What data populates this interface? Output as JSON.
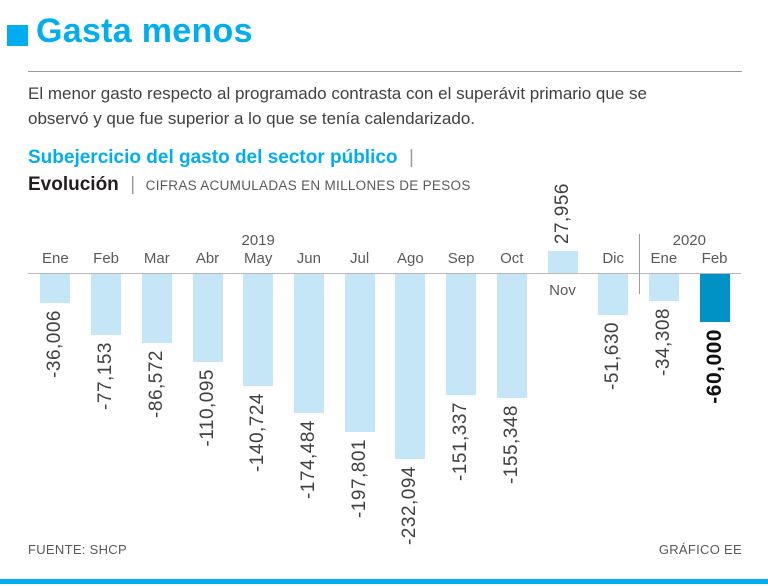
{
  "colors": {
    "accent": "#00AEEF",
    "bar": "#C5E6F7",
    "bar_highlight": "#0092C4",
    "text_dark": "#414042",
    "text_gray": "#58595B",
    "rule": "#9B9B9B"
  },
  "header": {
    "title": "Gasta menos"
  },
  "intro": "El menor gasto respecto al programado contrasta con el superávit primario que se observó y que fue superior a lo que se tenía calendarizado.",
  "chart_header": {
    "title": "Subejercicio del gasto del sector público",
    "separator": "|",
    "subtitle_bold": "Evolución",
    "subtitle_caption": "CIFRAS ACUMULADAS EN MILLONES DE PESOS"
  },
  "footer": {
    "source": "FUENTE: SHCP",
    "credit": "GRÁFICO EE"
  },
  "chart_data": {
    "type": "bar",
    "title": "Subejercicio del gasto del sector público — Evolución",
    "unit": "cifras acumuladas en millones de pesos",
    "categories": [
      "Ene",
      "Feb",
      "Mar",
      "Abr",
      "May",
      "Jun",
      "Jul",
      "Ago",
      "Sep",
      "Oct",
      "Nov",
      "Dic",
      "Ene",
      "Feb"
    ],
    "values": [
      -36006,
      -77153,
      -86572,
      -110095,
      -140724,
      -174484,
      -197801,
      -232094,
      -151337,
      -155348,
      27956,
      -51630,
      -34308,
      -60000
    ],
    "labels": [
      "-36,006",
      "-77,153",
      "-86,572",
      "-110,095",
      "-140,724",
      "-174,484",
      "-197,801",
      "-232,094",
      "-151,337",
      "-155,348",
      "27,956",
      "-51,630",
      "-34,308",
      "-60,000"
    ],
    "highlight_index": 13,
    "year_labels": [
      {
        "label": "2019",
        "col_center": 4.5
      },
      {
        "label": "2020",
        "col_center": 13
      }
    ],
    "divider_col": 12,
    "ylim": [
      -240000,
      30000
    ],
    "baseline": 0,
    "grid": false,
    "legend": false
  }
}
